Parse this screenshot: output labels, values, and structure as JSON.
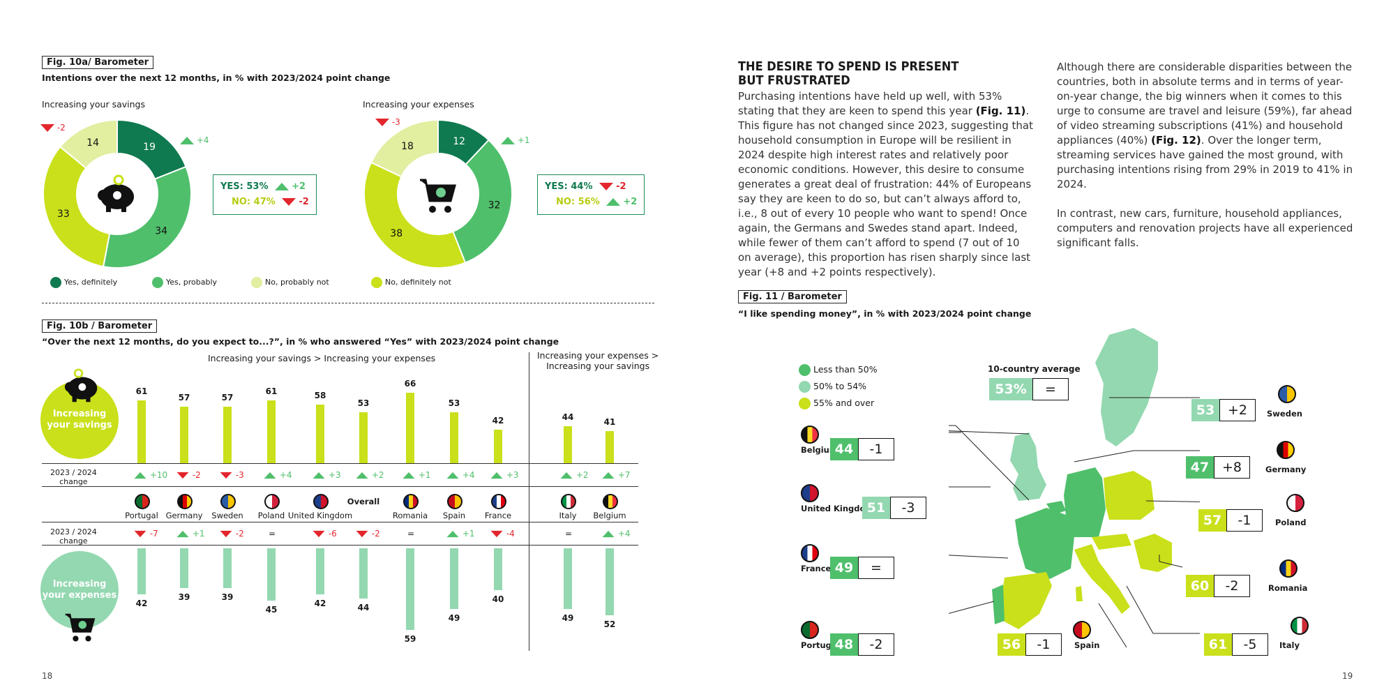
{
  "page_left": "18",
  "page_right": "19",
  "fig10a": {
    "tag": "Fig. 10a/ Barometer",
    "title": "Intentions over the next 12 months, in % with 2023/2024 point change",
    "savings": {
      "label": "Increasing your savings",
      "values": [
        19,
        34,
        33,
        14
      ],
      "top_change": "-2",
      "right_change": "+4",
      "yes": "YES: 53%",
      "yes_change": "+2",
      "no": "NO: 47%",
      "no_change": "-2"
    },
    "expenses": {
      "label": "Increasing your expenses",
      "values": [
        12,
        32,
        38,
        18
      ],
      "top_change": "-3",
      "right_change": "+1",
      "yes": "YES: 44%",
      "yes_change": "-2",
      "no": "NO: 56%",
      "no_change": "+2"
    },
    "legend": [
      "Yes, definitely",
      "Yes, probably",
      "No, probably not",
      "No, definitely not"
    ],
    "colors": [
      "#0f7a4f",
      "#4fbf6b",
      "#c9e01a",
      "#e2eea0"
    ]
  },
  "fig10b": {
    "tag": "Fig. 10b / Barometer",
    "title": "“Over the next 12 months, do you expect to...?”, in % who answered “Yes” with 2023/2024 point change",
    "group1": "Increasing your savings > Increasing your expenses",
    "group2_line1": "Increasing your expenses >",
    "group2_line2": "Increasing your savings",
    "savings_circle_l1": "Increasing",
    "savings_circle_l2": "your savings",
    "expenses_circle_l1": "Increasing",
    "expenses_circle_l2": "your expenses",
    "change_label_l1": "2023 / 2024",
    "change_label_l2": "change",
    "countries": [
      "Portugal",
      "Germany",
      "Sweden",
      "Poland",
      "United Kingdom",
      "Overall",
      "Romania",
      "Spain",
      "France",
      "Italy",
      "Belgium"
    ],
    "savings": [
      61,
      57,
      57,
      61,
      58,
      53,
      66,
      53,
      42,
      44,
      41
    ],
    "savings_change": [
      "+10",
      "-2",
      "-3",
      "+4",
      "+3",
      "+2",
      "+1",
      "+4",
      "+3",
      "+2",
      "+7"
    ],
    "expenses": [
      42,
      39,
      39,
      45,
      42,
      44,
      59,
      49,
      40,
      49,
      52
    ],
    "expenses_change": [
      "-7",
      "+1",
      "-2",
      "=",
      "-6",
      "-2",
      "=",
      "+1",
      "-4",
      "=",
      "+4"
    ]
  },
  "article": {
    "heading_l1": "THE DESIRE TO SPEND IS PRESENT",
    "heading_l2": "BUT FRUSTRATED",
    "col1_a": "Purchasing intentions have held up well, with 53% stating that they are keen to spend this year ",
    "col1_ref": "(Fig. 11)",
    "col1_b": ". This figure has not changed since 2023, suggesting that household consumption in Europe will be resilient in 2024 despite high interest rates and relatively poor economic conditions. However, this desire to consume generates a great deal of frustration: 44% of Europeans say they are keen to do so, but can’t always afford to, i.e., 8 out of every 10 people who want to spend! Once again, the Germans and Swedes stand apart. Indeed, while fewer of them can’t afford to spend (7 out of 10 on average), this proportion has risen sharply since last year (+8 and +2 points respectively).",
    "col2_a": "Although there are considerable disparities between the countries, both in absolute terms and in terms of year-on-year change, the big winners when it comes to this urge to consume are travel and leisure (59%), far ahead of video streaming subscriptions (41%) and household appliances (40%) ",
    "col2_ref": "(Fig. 12)",
    "col2_b": ". Over the longer term, streaming services have gained the most ground, with purchasing intentions rising from 29% in 2019 to 41% in 2024.",
    "col2_p2": "In contrast, new cars, furniture, household appliances, computers and renovation projects have all experienced significant falls."
  },
  "fig11": {
    "tag": "Fig. 11 / Barometer",
    "title": "“I like spending money”, in % with 2023/2024 point change",
    "legend": [
      "Less than 50%",
      "50% to 54%",
      "55% and over"
    ],
    "legend_colors": [
      "#4fbf6b",
      "#93d8b0",
      "#c9e01a"
    ],
    "avg_label": "10-country average",
    "avg_value": "53%",
    "avg_change": "=",
    "countries": [
      {
        "name": "Belgium",
        "value": "44",
        "change": "-1",
        "tier": 0
      },
      {
        "name": "United Kingdom",
        "value": "51",
        "change": "-3",
        "tier": 1
      },
      {
        "name": "France",
        "value": "49",
        "change": "=",
        "tier": 0
      },
      {
        "name": "Portugal",
        "value": "48",
        "change": "-2",
        "tier": 0
      },
      {
        "name": "Spain",
        "value": "56",
        "change": "-1",
        "tier": 2
      },
      {
        "name": "Sweden",
        "value": "53",
        "change": "+2",
        "tier": 1
      },
      {
        "name": "Germany",
        "value": "47",
        "change": "+8",
        "tier": 0
      },
      {
        "name": "Poland",
        "value": "57",
        "change": "-1",
        "tier": 2
      },
      {
        "name": "Romania",
        "value": "60",
        "change": "-2",
        "tier": 2
      },
      {
        "name": "Italy",
        "value": "61",
        "change": "-5",
        "tier": 2
      }
    ]
  }
}
